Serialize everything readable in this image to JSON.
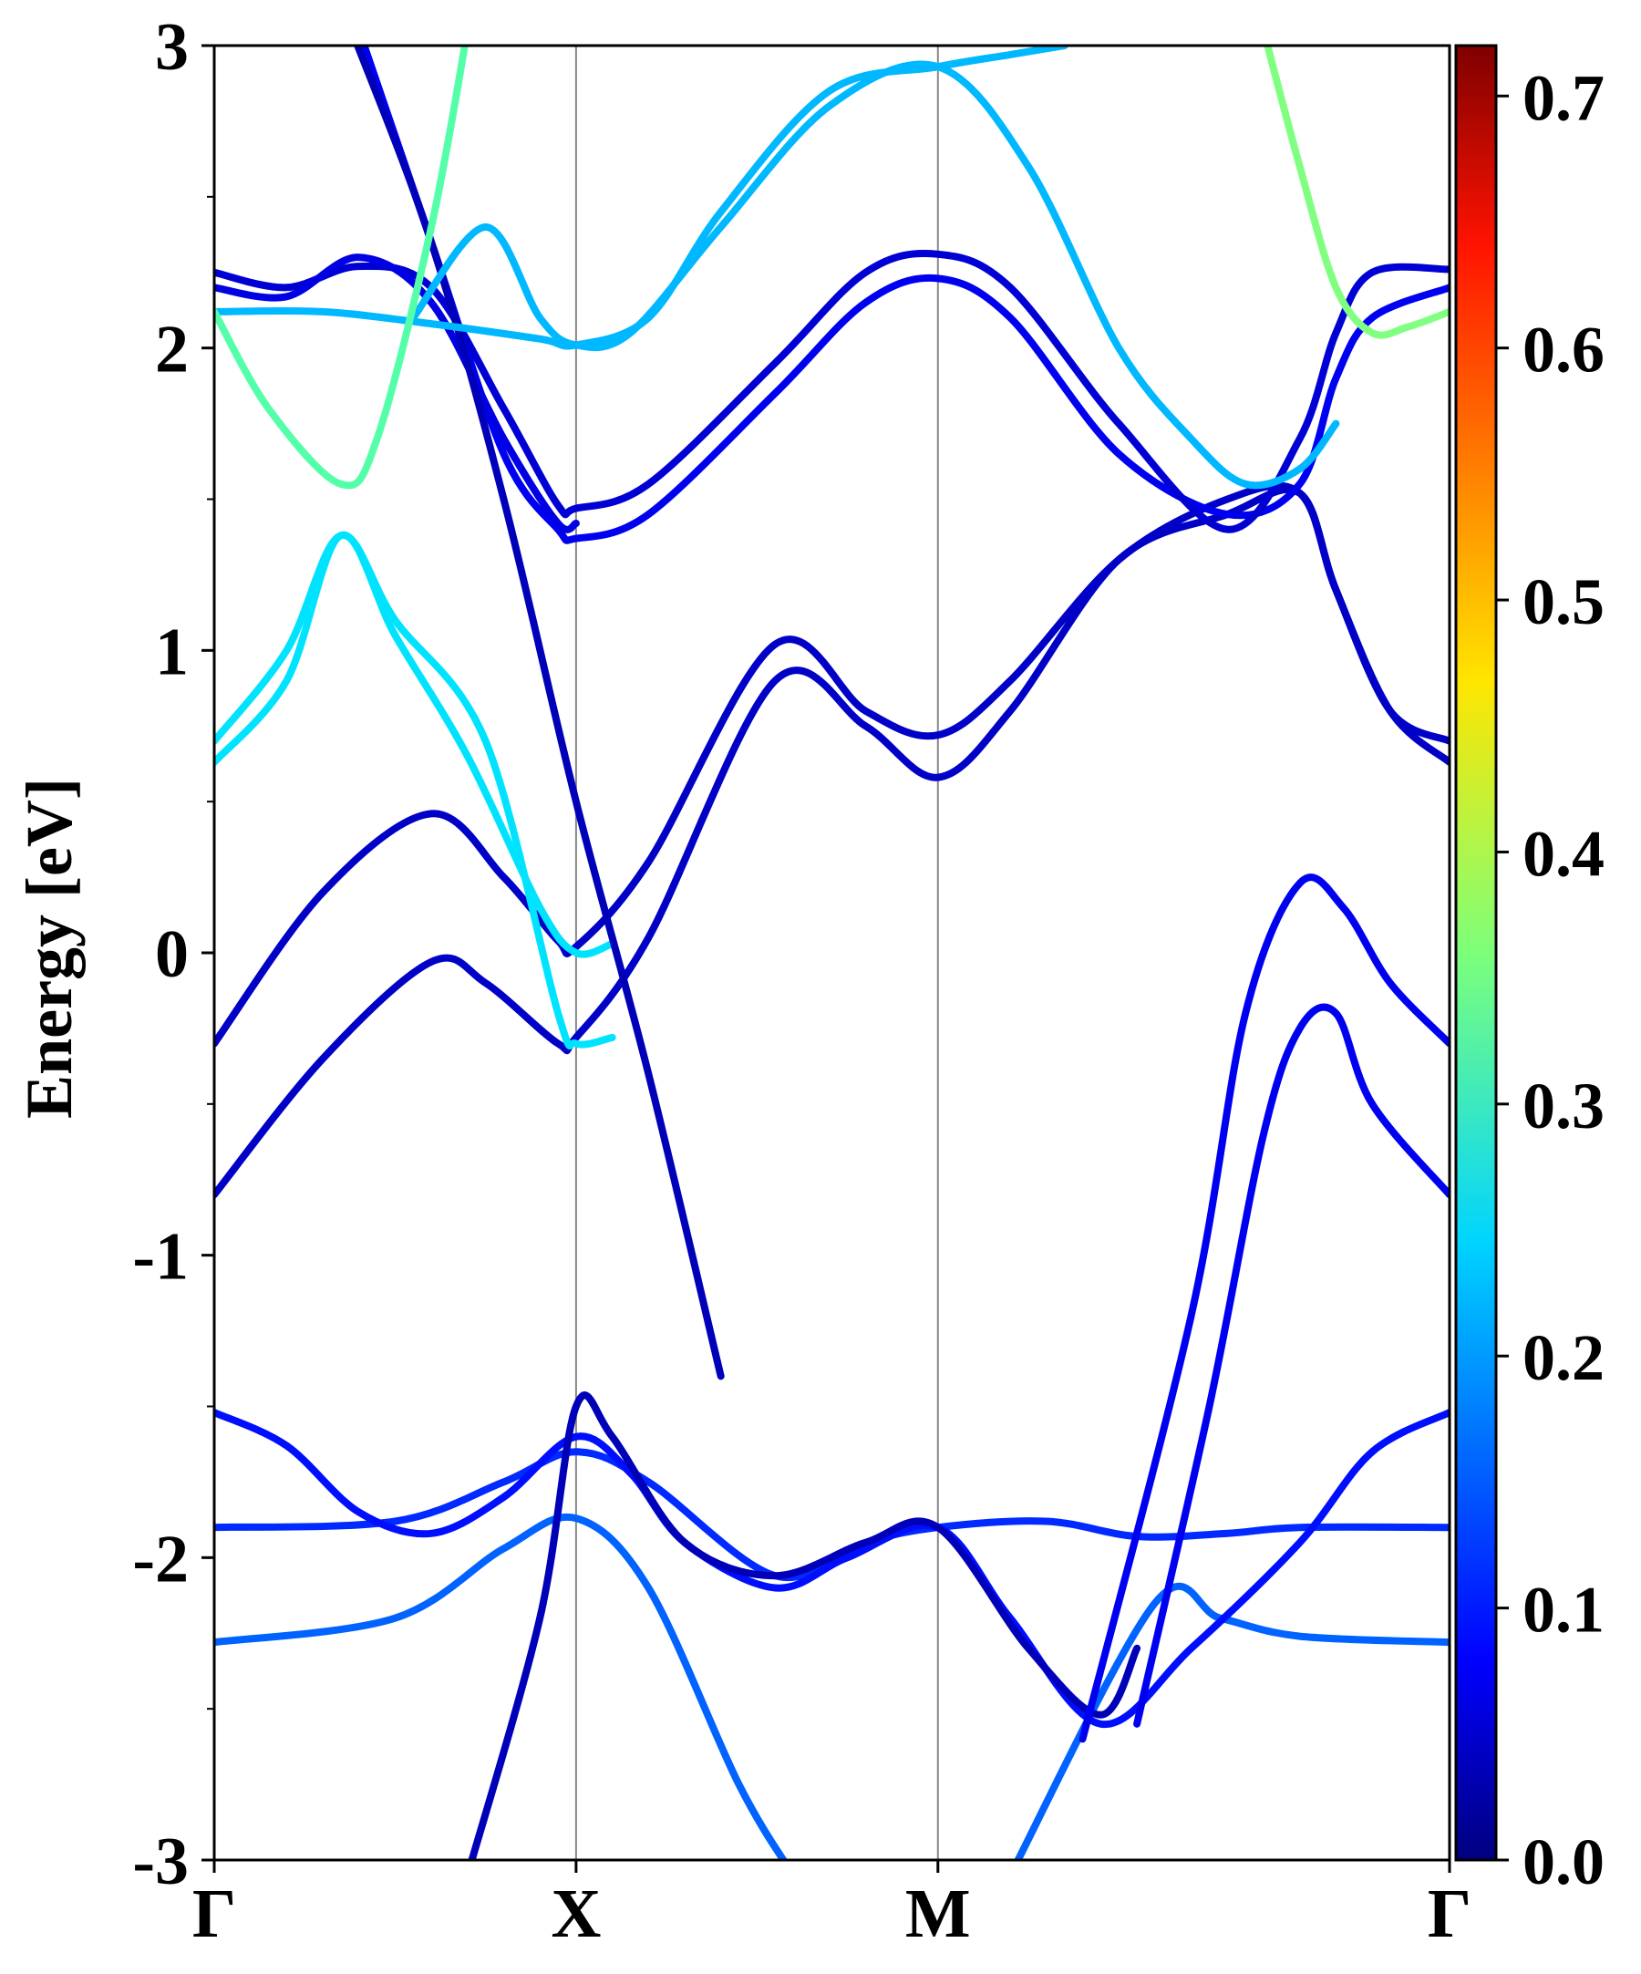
{
  "chart_data": {
    "type": "line",
    "title": "",
    "ylabel": "Energy [eV]",
    "xlabel": "",
    "ylim": [
      -3,
      3
    ],
    "yticks": [
      -3,
      -2,
      -1,
      0,
      1,
      2,
      3
    ],
    "ytick_labels": [
      "-3",
      "-2",
      "-1",
      "0",
      "1",
      "2",
      "3"
    ],
    "kpath_ticks": [
      0,
      1,
      2,
      3.414
    ],
    "kpath_labels": [
      "Γ",
      "X",
      "M",
      "Γ"
    ],
    "x_range": [
      0,
      3.414
    ],
    "grid": false,
    "vertical_lines_at": [
      1,
      2
    ],
    "colorbar": {
      "colormap": "jet",
      "range": [
        0,
        0.72
      ],
      "ticks": [
        0.0,
        0.1,
        0.2,
        0.3,
        0.4,
        0.5,
        0.6,
        0.7
      ],
      "tick_labels": [
        "0.0",
        "0.1",
        "0.2",
        "0.3",
        "0.4",
        "0.5",
        "0.6",
        "0.7"
      ]
    },
    "bands": [
      {
        "points": [
          [
            0,
            -1.9
          ],
          [
            0.5,
            -1.88
          ],
          [
            0.8,
            -1.75
          ],
          [
            1,
            -1.65
          ],
          [
            1.2,
            -1.75
          ],
          [
            1.55,
            -2.06
          ],
          [
            1.8,
            -1.95
          ],
          [
            2,
            -1.9
          ],
          [
            2.3,
            -1.88
          ],
          [
            2.55,
            -1.93
          ],
          [
            2.8,
            -1.92
          ],
          [
            3.0,
            -1.9
          ],
          [
            3.414,
            -1.9
          ]
        ],
        "weight": 0.12
      },
      {
        "points": [
          [
            0,
            -2.28
          ],
          [
            0.5,
            -2.2
          ],
          [
            0.8,
            -1.97
          ],
          [
            1,
            -1.87
          ],
          [
            1.2,
            -2.1
          ],
          [
            1.45,
            -2.75
          ],
          [
            1.6,
            -3.05
          ]
        ],
        "weight": 0.16
      },
      {
        "points": [
          [
            2.2,
            -3.05
          ],
          [
            2.6,
            -2.15
          ],
          [
            2.78,
            -2.2
          ],
          [
            3.0,
            -2.26
          ],
          [
            3.414,
            -2.28
          ]
        ],
        "weight": 0.16
      },
      {
        "points": [
          [
            0,
            -1.52
          ],
          [
            0.2,
            -1.63
          ],
          [
            0.4,
            -1.85
          ],
          [
            0.6,
            -1.92
          ],
          [
            0.8,
            -1.8
          ],
          [
            1,
            -1.6
          ],
          [
            1.15,
            -1.72
          ],
          [
            1.3,
            -1.95
          ],
          [
            1.55,
            -2.1
          ],
          [
            1.75,
            -2.0
          ],
          [
            2,
            -1.9
          ],
          [
            2.2,
            -2.2
          ],
          [
            2.45,
            -2.55
          ],
          [
            2.7,
            -2.3
          ],
          [
            3.0,
            -1.95
          ],
          [
            3.2,
            -1.65
          ],
          [
            3.414,
            -1.52
          ]
        ],
        "weight": 0.1
      },
      {
        "points": [
          [
            0.7,
            -3.05
          ],
          [
            0.9,
            -2.2
          ],
          [
            1,
            -1.5
          ],
          [
            1.1,
            -1.6
          ],
          [
            1.3,
            -1.95
          ],
          [
            1.55,
            -2.06
          ],
          [
            1.8,
            -1.95
          ],
          [
            2,
            -1.9
          ],
          [
            2.25,
            -2.3
          ],
          [
            2.45,
            -2.52
          ],
          [
            2.55,
            -2.3
          ]
        ],
        "weight": 0.04
      },
      {
        "points": [
          [
            0,
            -0.8
          ],
          [
            0.3,
            -0.35
          ],
          [
            0.6,
            -0.03
          ],
          [
            0.75,
            -0.1
          ],
          [
            0.95,
            -0.3
          ],
          [
            1,
            -0.28
          ],
          [
            1.2,
            0.05
          ],
          [
            1.55,
            0.9
          ],
          [
            1.8,
            0.75
          ],
          [
            2,
            0.58
          ],
          [
            2.2,
            0.8
          ],
          [
            2.5,
            1.3
          ],
          [
            2.8,
            1.45
          ],
          [
            3.0,
            1.52
          ],
          [
            3.1,
            1.2
          ],
          [
            3.25,
            0.8
          ],
          [
            3.414,
            0.7
          ]
        ],
        "weight": 0.05
      },
      {
        "points": [
          [
            0,
            -0.3
          ],
          [
            0.3,
            0.2
          ],
          [
            0.6,
            0.46
          ],
          [
            0.8,
            0.25
          ],
          [
            0.95,
            0.04
          ],
          [
            1,
            0.02
          ],
          [
            1.2,
            0.3
          ],
          [
            1.55,
            1.02
          ],
          [
            1.8,
            0.8
          ],
          [
            2,
            0.72
          ],
          [
            2.2,
            0.9
          ],
          [
            2.5,
            1.3
          ],
          [
            2.8,
            1.5
          ],
          [
            3.0,
            1.52
          ],
          [
            3.1,
            1.2
          ],
          [
            3.25,
            0.8
          ],
          [
            3.414,
            0.63
          ]
        ],
        "weight": 0.05
      },
      {
        "points": [
          [
            0,
            0.63
          ],
          [
            0.2,
            0.9
          ],
          [
            0.35,
            1.38
          ],
          [
            0.5,
            1.05
          ],
          [
            0.7,
            0.65
          ],
          [
            0.9,
            0.15
          ],
          [
            1,
            0.0
          ],
          [
            1.1,
            0.03
          ]
        ],
        "weight": 0.25
      },
      {
        "points": [
          [
            0,
            0.7
          ],
          [
            0.2,
            1.0
          ],
          [
            0.35,
            1.38
          ],
          [
            0.5,
            1.1
          ],
          [
            0.75,
            0.7
          ],
          [
            0.95,
            -0.2
          ],
          [
            1,
            -0.3
          ],
          [
            1.1,
            -0.28
          ]
        ],
        "weight": 0.25
      },
      {
        "points": [
          [
            2.55,
            -2.55
          ],
          [
            2.75,
            -1.5
          ],
          [
            2.9,
            -0.6
          ],
          [
            3.0,
            -0.25
          ],
          [
            3.1,
            -0.2
          ],
          [
            3.2,
            -0.5
          ],
          [
            3.414,
            -0.8
          ]
        ],
        "weight": 0.08
      },
      {
        "points": [
          [
            2.4,
            -2.6
          ],
          [
            2.7,
            -1.2
          ],
          [
            2.85,
            -0.2
          ],
          [
            3.0,
            0.23
          ],
          [
            3.12,
            0.15
          ],
          [
            3.25,
            -0.1
          ],
          [
            3.414,
            -0.3
          ]
        ],
        "weight": 0.08
      },
      {
        "points": [
          [
            0.4,
            3.05
          ],
          [
            0.6,
            2.35
          ],
          [
            0.8,
            1.65
          ],
          [
            0.95,
            1.4
          ],
          [
            1,
            1.37
          ],
          [
            1.2,
            1.45
          ],
          [
            1.55,
            1.85
          ],
          [
            1.8,
            2.15
          ],
          [
            2,
            2.23
          ],
          [
            2.2,
            2.1
          ],
          [
            2.5,
            1.65
          ],
          [
            2.8,
            1.45
          ],
          [
            3.0,
            1.55
          ],
          [
            3.1,
            1.9
          ],
          [
            3.2,
            2.1
          ],
          [
            3.414,
            2.2
          ]
        ],
        "weight": 0.08
      },
      {
        "points": [
          [
            0,
            2.25
          ],
          [
            0.2,
            2.2
          ],
          [
            0.4,
            2.27
          ],
          [
            0.6,
            2.2
          ],
          [
            0.8,
            1.8
          ],
          [
            0.95,
            1.48
          ],
          [
            1,
            1.47
          ],
          [
            1.2,
            1.55
          ],
          [
            1.55,
            1.95
          ],
          [
            1.8,
            2.25
          ],
          [
            2,
            2.31
          ],
          [
            2.2,
            2.2
          ],
          [
            2.5,
            1.75
          ],
          [
            2.8,
            1.4
          ],
          [
            3.0,
            1.7
          ],
          [
            3.1,
            2.05
          ],
          [
            3.2,
            2.25
          ],
          [
            3.414,
            2.26
          ]
        ],
        "weight": 0.06
      },
      {
        "points": [
          [
            0,
            2.2
          ],
          [
            0.2,
            2.17
          ],
          [
            0.4,
            2.3
          ],
          [
            0.6,
            2.15
          ],
          [
            0.8,
            1.7
          ],
          [
            0.95,
            1.42
          ],
          [
            1,
            1.42
          ]
        ],
        "weight": 0.07
      },
      {
        "points": [
          [
            0.38,
            3.05
          ],
          [
            0.6,
            2.35
          ],
          [
            0.8,
            1.5
          ],
          [
            1.0,
            0.5
          ],
          [
            1.2,
            -0.4
          ],
          [
            1.4,
            -1.4
          ]
        ],
        "weight": 0.04
      },
      {
        "points": [
          [
            0,
            2.12
          ],
          [
            0.3,
            2.12
          ],
          [
            0.6,
            2.08
          ],
          [
            0.9,
            2.03
          ],
          [
            1,
            2.01
          ],
          [
            1.2,
            2.1
          ],
          [
            1.4,
            2.45
          ],
          [
            1.7,
            2.85
          ],
          [
            2,
            2.93
          ],
          [
            2.2,
            2.97
          ],
          [
            2.35,
            3.0
          ]
        ],
        "weight": 0.22
      },
      {
        "points": [
          [
            0.55,
            2.1
          ],
          [
            0.75,
            2.4
          ],
          [
            0.9,
            2.1
          ],
          [
            1,
            2.01
          ],
          [
            1.15,
            2.05
          ],
          [
            1.4,
            2.4
          ],
          [
            1.7,
            2.8
          ],
          [
            2,
            2.93
          ],
          [
            2.25,
            2.6
          ],
          [
            2.5,
            2.0
          ],
          [
            2.7,
            1.7
          ],
          [
            2.85,
            1.55
          ],
          [
            3.0,
            1.6
          ],
          [
            3.1,
            1.75
          ]
        ],
        "weight": 0.22
      },
      {
        "points": [
          [
            0,
            2.12
          ],
          [
            0.15,
            1.8
          ],
          [
            0.35,
            1.55
          ],
          [
            0.45,
            1.7
          ],
          [
            0.6,
            2.4
          ],
          [
            0.7,
            3.05
          ]
        ],
        "weight": 0.33
      },
      {
        "points": [
          [
            2.9,
            3.05
          ],
          [
            3.0,
            2.6
          ],
          [
            3.1,
            2.2
          ],
          [
            3.2,
            2.05
          ],
          [
            3.3,
            2.07
          ],
          [
            3.414,
            2.12
          ]
        ],
        "weight": 0.36
      }
    ]
  }
}
